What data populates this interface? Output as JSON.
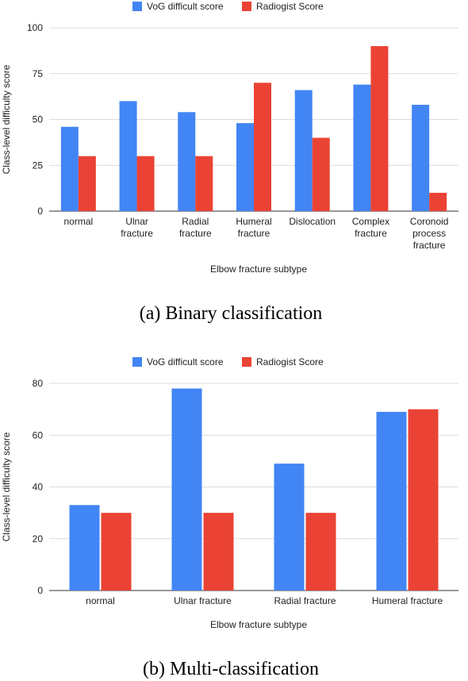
{
  "chart_data": [
    {
      "type": "bar",
      "ylabel": "Class-level difficulty score",
      "xlabel": "Elbow fracture subtype",
      "ylim": [
        0,
        100
      ],
      "yticks": [
        0,
        25,
        50,
        75,
        100
      ],
      "grid": true,
      "legend_position": "top",
      "categories": [
        [
          "normal"
        ],
        [
          "Ulnar",
          "fracture"
        ],
        [
          "Radial",
          "fracture"
        ],
        [
          "Humeral",
          "fracture"
        ],
        [
          "Dislocation"
        ],
        [
          "Complex",
          "fracture"
        ],
        [
          "Coronoid",
          "process",
          "fracture"
        ]
      ],
      "series": [
        {
          "name": "VoG difficult score",
          "color": "#4285f4",
          "values": [
            46,
            60,
            54,
            48,
            66,
            69,
            58
          ]
        },
        {
          "name": "Radiogist Score",
          "color": "#ea4335",
          "values": [
            30,
            30,
            30,
            70,
            40,
            90,
            10
          ]
        }
      ]
    },
    {
      "type": "bar",
      "ylabel": "Class-level difficulty score",
      "xlabel": "Elbow fracture subtype",
      "ylim": [
        0,
        80
      ],
      "yticks": [
        0,
        20,
        40,
        60,
        80
      ],
      "grid": true,
      "legend_position": "top",
      "categories": [
        [
          "normal"
        ],
        [
          "Ulnar fracture"
        ],
        [
          "Radial fracture"
        ],
        [
          "Humeral fracture"
        ]
      ],
      "series": [
        {
          "name": "VoG difficult score",
          "color": "#4285f4",
          "values": [
            33,
            78,
            49,
            69
          ]
        },
        {
          "name": "Radiogist Score",
          "color": "#ea4335",
          "values": [
            30,
            30,
            30,
            70
          ]
        }
      ]
    }
  ],
  "captions": [
    "(a) Binary classification",
    "(b) Multi-classification"
  ]
}
